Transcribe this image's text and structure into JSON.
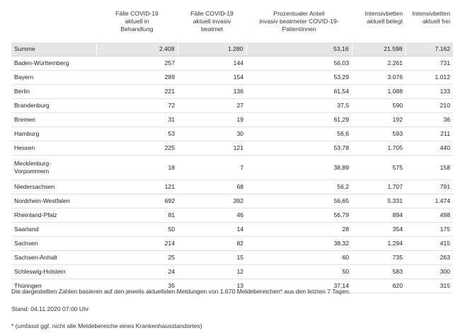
{
  "table": {
    "headers": [
      "",
      "Fälle COVID-19 aktuell in Behandlung",
      "Fälle COVID-19 aktuell invasiv beatmet",
      "Prozentualer Anteil invasiv beatmeter COVID-19-PatientInnen",
      "Intensivbetten aktuell belegt",
      "Intensivbetten aktuell frei"
    ],
    "header_lines": [
      [],
      [
        "Fälle COVID-19",
        "aktuell in",
        "Behandlung"
      ],
      [
        "Fälle COVID-19",
        "aktuell invasiv",
        "beatmet"
      ],
      [
        "Prozentualer Anteil",
        "invasiv beatmeter COVID-19-",
        "PatientInnen"
      ],
      [
        "Intensivbetten",
        "aktuell belegt"
      ],
      [
        "Intensivbetten",
        "aktuell frei"
      ]
    ],
    "rows": [
      {
        "name": "Summe",
        "values": [
          "2.408",
          "1.280",
          "53,16",
          "21.598",
          "7.162"
        ]
      },
      {
        "name": "Baden-Württemberg",
        "values": [
          "257",
          "144",
          "56,03",
          "2.261",
          "731"
        ]
      },
      {
        "name": "Bayern",
        "values": [
          "289",
          "154",
          "53,29",
          "3.076",
          "1.012"
        ]
      },
      {
        "name": "Berlin",
        "values": [
          "221",
          "136",
          "61,54",
          "1.088",
          "133"
        ]
      },
      {
        "name": "Brandenburg",
        "values": [
          "72",
          "27",
          "37,5",
          "590",
          "210"
        ]
      },
      {
        "name": "Bremen",
        "values": [
          "31",
          "19",
          "61,29",
          "192",
          "36"
        ]
      },
      {
        "name": "Hamburg",
        "values": [
          "53",
          "30",
          "56,6",
          "593",
          "211"
        ]
      },
      {
        "name": "Hessen",
        "values": [
          "225",
          "121",
          "53,78",
          "1.705",
          "440"
        ]
      },
      {
        "name": "Mecklenburg-Vorpommern",
        "name_lines": [
          "Mecklenburg-",
          "Vorpommern"
        ],
        "values": [
          "18",
          "7",
          "38,89",
          "575",
          "158"
        ]
      },
      {
        "name": "Niedersachsen",
        "values": [
          "121",
          "68",
          "56,2",
          "1.707",
          "791"
        ]
      },
      {
        "name": "Nordrhein-Westfalen",
        "values": [
          "692",
          "392",
          "56,65",
          "5.331",
          "1.474"
        ]
      },
      {
        "name": "Rheinland-Pfalz",
        "values": [
          "81",
          "46",
          "56,79",
          "894",
          "498"
        ]
      },
      {
        "name": "Saarland",
        "values": [
          "50",
          "14",
          "28",
          "354",
          "175"
        ]
      },
      {
        "name": "Sachsen",
        "values": [
          "214",
          "82",
          "38,32",
          "1.294",
          "415"
        ]
      },
      {
        "name": "Sachsen-Anhalt",
        "values": [
          "25",
          "15",
          "60",
          "735",
          "263"
        ]
      },
      {
        "name": "Schleswig-Holstein",
        "values": [
          "24",
          "12",
          "50",
          "583",
          "300"
        ]
      },
      {
        "name": "Thüringen",
        "values": [
          "35",
          "13",
          "37,14",
          "620",
          "315"
        ]
      }
    ]
  },
  "notes": {
    "basis": "Die dargestellten Zahlen basieren auf den jeweils aktuellsten Meldungen von 1.670 Meldebereichen* aus den letzten 7 Tagen.",
    "stand": "Stand: 04.11.2020 07:00 Uhr",
    "footnote": "* (umfasst ggf. nicht alle Meldebereiche eines Krankenhausstandortes)"
  },
  "colors": {
    "sum_row_bg": "#e6e6e6",
    "row_border": "#e2e2e2",
    "text": "#222222"
  }
}
